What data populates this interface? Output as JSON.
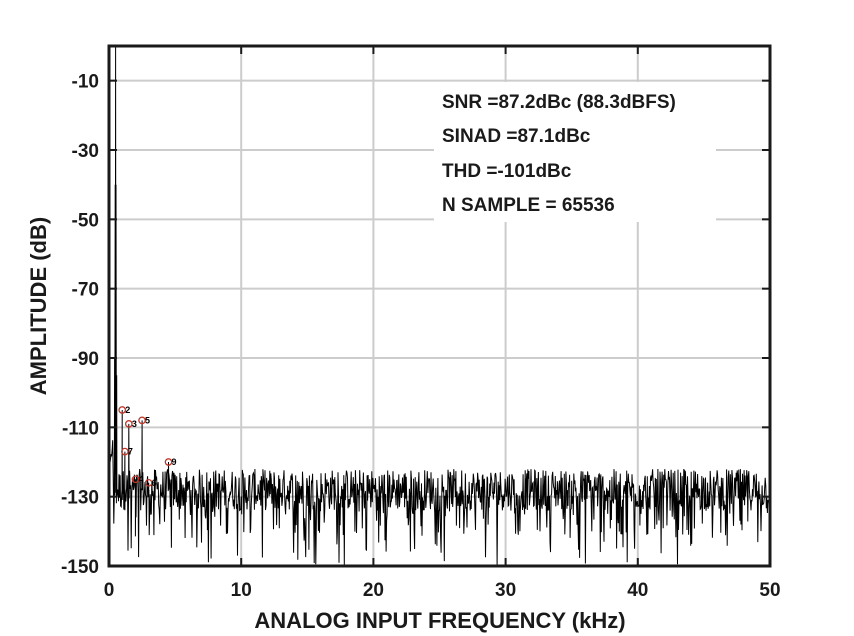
{
  "chart_data": {
    "type": "line",
    "xlabel": "ANALOG INPUT FREQUENCY (kHz)",
    "ylabel": "AMPLITUDE (dB)",
    "xlim": [
      0,
      50
    ],
    "ylim": [
      -150,
      0
    ],
    "x_ticks": [
      "0",
      "10",
      "20",
      "30",
      "40",
      "50"
    ],
    "y_ticks": [
      "-10",
      "-30",
      "-50",
      "-70",
      "-90",
      "-110",
      "-130",
      "-150"
    ],
    "grid": true,
    "annotations": [
      "SNR =87.2dBc (88.3dBFS)",
      "SINAD =87.1dBc",
      "THD =-101dBc",
      "N SAMPLE = 65536"
    ],
    "fundamental": {
      "x": 0.5,
      "y": 0
    },
    "noise_floor": {
      "mean": -128,
      "min": -150,
      "max": -120
    },
    "harmonics": [
      {
        "label": "2",
        "x": 1.0,
        "y": -105
      },
      {
        "label": "3",
        "x": 1.5,
        "y": -109
      },
      {
        "label": "4",
        "x": 2.0,
        "y": -125
      },
      {
        "label": "5",
        "x": 2.5,
        "y": -108
      },
      {
        "label": "6",
        "x": 3.0,
        "y": -126
      },
      {
        "label": "7",
        "x": 1.2,
        "y": -117
      },
      {
        "label": "9",
        "x": 4.5,
        "y": -120
      }
    ]
  }
}
